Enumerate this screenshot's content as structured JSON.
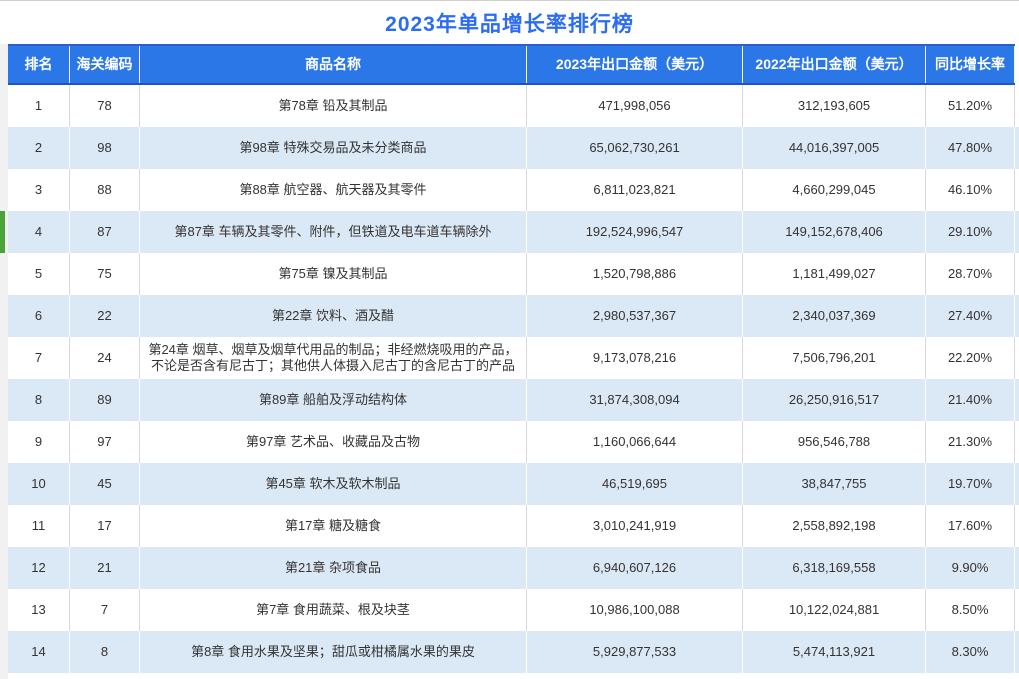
{
  "title": "2023年单品增长率排行榜",
  "columns": [
    {
      "key": "rank",
      "label": "排名"
    },
    {
      "key": "code",
      "label": "海关编码"
    },
    {
      "key": "name",
      "label": "商品名称"
    },
    {
      "key": "amount2023",
      "label": "2023年出口金额（美元）"
    },
    {
      "key": "amount2022",
      "label": "2022年出口金额（美元）"
    },
    {
      "key": "growth",
      "label": "同比增长率"
    }
  ],
  "rows": [
    {
      "rank": "1",
      "code": "78",
      "name": "第78章  铅及其制品",
      "amount2023": "471,998,056",
      "amount2022": "312,193,605",
      "growth": "51.20%"
    },
    {
      "rank": "2",
      "code": "98",
      "name": "第98章  特殊交易品及未分类商品",
      "amount2023": "65,062,730,261",
      "amount2022": "44,016,397,005",
      "growth": "47.80%"
    },
    {
      "rank": "3",
      "code": "88",
      "name": "第88章  航空器、航天器及其零件",
      "amount2023": "6,811,023,821",
      "amount2022": "4,660,299,045",
      "growth": "46.10%"
    },
    {
      "rank": "4",
      "code": "87",
      "name": "第87章  车辆及其零件、附件，但铁道及电车道车辆除外",
      "amount2023": "192,524,996,547",
      "amount2022": "149,152,678,406",
      "growth": "29.10%"
    },
    {
      "rank": "5",
      "code": "75",
      "name": "第75章  镍及其制品",
      "amount2023": "1,520,798,886",
      "amount2022": "1,181,499,027",
      "growth": "28.70%"
    },
    {
      "rank": "6",
      "code": "22",
      "name": "第22章  饮料、酒及醋",
      "amount2023": "2,980,537,367",
      "amount2022": "2,340,037,369",
      "growth": "27.40%"
    },
    {
      "rank": "7",
      "code": "24",
      "name": "第24章  烟草、烟草及烟草代用品的制品；非经燃烧吸用的产品，不论是否含有尼古丁；其他供人体摄入尼古丁的含尼古丁的产品",
      "amount2023": "9,173,078,216",
      "amount2022": "7,506,796,201",
      "growth": "22.20%"
    },
    {
      "rank": "8",
      "code": "89",
      "name": "第89章  船舶及浮动结构体",
      "amount2023": "31,874,308,094",
      "amount2022": "26,250,916,517",
      "growth": "21.40%"
    },
    {
      "rank": "9",
      "code": "97",
      "name": "第97章  艺术品、收藏品及古物",
      "amount2023": "1,160,066,644",
      "amount2022": "956,546,788",
      "growth": "21.30%"
    },
    {
      "rank": "10",
      "code": "45",
      "name": "第45章  软木及软木制品",
      "amount2023": "46,519,695",
      "amount2022": "38,847,755",
      "growth": "19.70%"
    },
    {
      "rank": "11",
      "code": "17",
      "name": "第17章  糖及糖食",
      "amount2023": "3,010,241,919",
      "amount2022": "2,558,892,198",
      "growth": "17.60%"
    },
    {
      "rank": "12",
      "code": "21",
      "name": "第21章  杂项食品",
      "amount2023": "6,940,607,126",
      "amount2022": "6,318,169,558",
      "growth": "9.90%"
    },
    {
      "rank": "13",
      "code": "7",
      "name": "第7章   食用蔬菜、根及块茎",
      "amount2023": "10,986,100,088",
      "amount2022": "10,122,024,881",
      "growth": "8.50%"
    },
    {
      "rank": "14",
      "code": "8",
      "name": "第8章   食用水果及坚果；甜瓜或柑橘属水果的果皮",
      "amount2023": "5,929,877,533",
      "amount2022": "5,474,113,921",
      "growth": "8.30%"
    }
  ],
  "highlight": {
    "rank": "4",
    "marker_color": "#4aa23a"
  },
  "colors": {
    "title_text": "#2b6df2",
    "header_bg": "#2b77e8",
    "header_text": "#ffffff",
    "row_alt_bg": "#dbe8f6",
    "row_bg": "#ffffff",
    "cell_text": "#333333"
  },
  "gridline_tick_positions": [
    28,
    110,
    227,
    363,
    532,
    737,
    920
  ]
}
